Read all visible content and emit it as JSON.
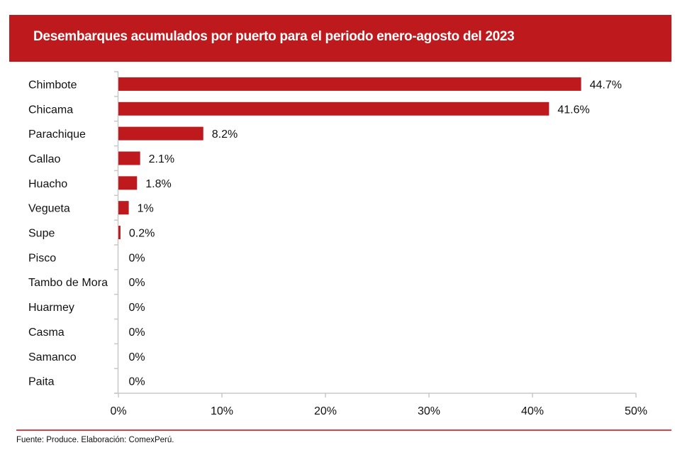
{
  "header": {
    "title": "Desembarques acumulados por puerto para el periodo enero-agosto del 2023"
  },
  "footer": {
    "source": "Fuente: Produce. Elaboración: ComexPerú."
  },
  "colors": {
    "title_bar": "#be1a1e",
    "bar": "#be1a1e",
    "footer_line": "#d9434a",
    "axis": "#c8c8c8"
  },
  "chart_data": {
    "type": "bar",
    "orientation": "horizontal",
    "title": "Desembarques acumulados por puerto para el periodo enero-agosto del 2023",
    "xlabel": "",
    "ylabel": "",
    "categories": [
      "Chimbote",
      "Chicama",
      "Parachique",
      "Callao",
      "Huacho",
      "Vegueta",
      "Supe",
      "Pisco",
      "Tambo de Mora",
      "Huarmey",
      "Casma",
      "Samanco",
      "Paita"
    ],
    "values": [
      44.7,
      41.6,
      8.2,
      2.1,
      1.8,
      1.0,
      0.2,
      0,
      0,
      0,
      0,
      0,
      0
    ],
    "value_labels": [
      "44.7%",
      "41.6%",
      "8.2%",
      "2.1%",
      "1.8%",
      "1%",
      "0.2%",
      "0%",
      "0%",
      "0%",
      "0%",
      "0%",
      "0%"
    ],
    "xlim": [
      0,
      50
    ],
    "xticks": [
      0,
      10,
      20,
      30,
      40,
      50
    ],
    "xtick_labels": [
      "0%",
      "10%",
      "20%",
      "30%",
      "40%",
      "50%"
    ],
    "grid": false,
    "legend": "none"
  }
}
